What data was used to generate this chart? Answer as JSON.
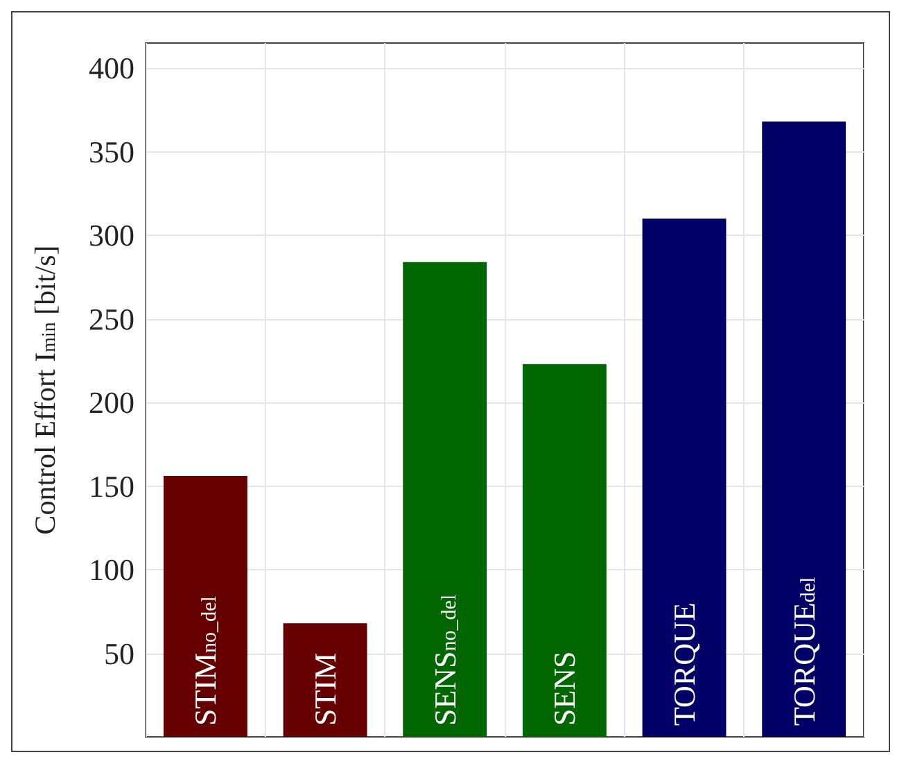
{
  "chart_data": {
    "type": "bar",
    "ylabel": "Control Effort I$_{min}$ [bit/s]",
    "categories": [
      "STIM$_{no_del}$",
      "STIM",
      "SENS$_{no_del}$",
      "SENS",
      "TORQUE",
      "TORQUE$_{del}$"
    ],
    "values": [
      156,
      68,
      284,
      223,
      310,
      368
    ],
    "colors": [
      "#660000",
      "#660000",
      "#006600",
      "#006600",
      "#000066",
      "#000066"
    ],
    "ylim": [
      0,
      415
    ],
    "yticks": [
      50,
      100,
      150,
      200,
      250,
      300,
      350,
      400
    ],
    "grid": true
  }
}
